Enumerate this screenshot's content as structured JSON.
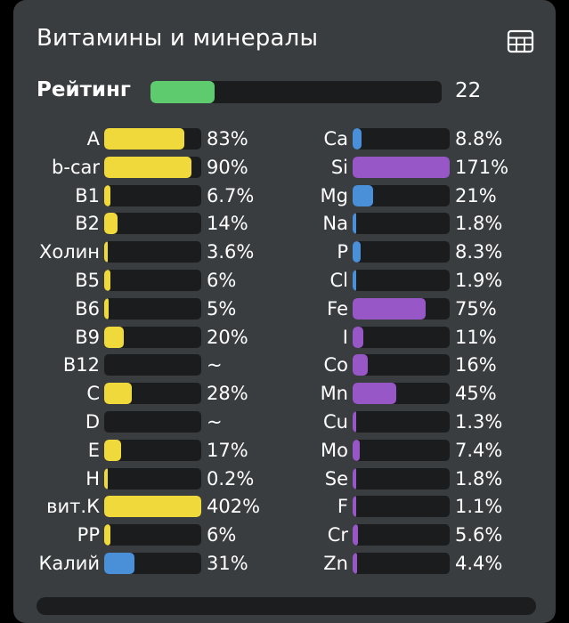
{
  "header": {
    "title": "Витамины и минералы",
    "table_icon": "table-grid-icon"
  },
  "rating": {
    "label": "Рейтинг",
    "value": "22",
    "fill_fraction": 0.22,
    "color": "#5fcb6f"
  },
  "colors": {
    "vitamin": "#f0d93a",
    "mineral": "#9857c6",
    "blue": "#4a90d9",
    "track": "#1b1c1e"
  },
  "vitamins": [
    {
      "label": "A",
      "value": "83%",
      "level": 0.83,
      "color": "yellow"
    },
    {
      "label": "b-car",
      "value": "90%",
      "level": 0.9,
      "color": "yellow"
    },
    {
      "label": "B1",
      "value": "6.7%",
      "level": 0.067,
      "color": "yellow"
    },
    {
      "label": "B2",
      "value": "14%",
      "level": 0.14,
      "color": "yellow"
    },
    {
      "label": "Холин",
      "value": "3.6%",
      "level": 0.036,
      "color": "yellow"
    },
    {
      "label": "B5",
      "value": "6%",
      "level": 0.06,
      "color": "yellow"
    },
    {
      "label": "B6",
      "value": "5%",
      "level": 0.05,
      "color": "yellow"
    },
    {
      "label": "B9",
      "value": "20%",
      "level": 0.2,
      "color": "yellow"
    },
    {
      "label": "B12",
      "value": "~",
      "level": 0,
      "color": "yellow"
    },
    {
      "label": "C",
      "value": "28%",
      "level": 0.28,
      "color": "yellow"
    },
    {
      "label": "D",
      "value": "~",
      "level": 0,
      "color": "yellow"
    },
    {
      "label": "E",
      "value": "17%",
      "level": 0.17,
      "color": "yellow"
    },
    {
      "label": "H",
      "value": "0.2%",
      "level": 0.002,
      "color": "yellow"
    },
    {
      "label": "вит.К",
      "value": "402%",
      "level": 1.0,
      "color": "yellow"
    },
    {
      "label": "PP",
      "value": "6%",
      "level": 0.06,
      "color": "yellow"
    },
    {
      "label": "Калий",
      "value": "31%",
      "level": 0.31,
      "color": "blue"
    }
  ],
  "minerals": [
    {
      "label": "Ca",
      "value": "8.8%",
      "level": 0.088,
      "color": "blue"
    },
    {
      "label": "Si",
      "value": "171%",
      "level": 1.0,
      "color": "purple"
    },
    {
      "label": "Mg",
      "value": "21%",
      "level": 0.21,
      "color": "blue"
    },
    {
      "label": "Na",
      "value": "1.8%",
      "level": 0.018,
      "color": "blue"
    },
    {
      "label": "P",
      "value": "8.3%",
      "level": 0.083,
      "color": "blue"
    },
    {
      "label": "Cl",
      "value": "1.9%",
      "level": 0.019,
      "color": "blue"
    },
    {
      "label": "Fe",
      "value": "75%",
      "level": 0.75,
      "color": "purple"
    },
    {
      "label": "I",
      "value": "11%",
      "level": 0.11,
      "color": "purple"
    },
    {
      "label": "Co",
      "value": "16%",
      "level": 0.16,
      "color": "purple"
    },
    {
      "label": "Mn",
      "value": "45%",
      "level": 0.45,
      "color": "purple"
    },
    {
      "label": "Cu",
      "value": "1.3%",
      "level": 0.013,
      "color": "purple"
    },
    {
      "label": "Mo",
      "value": "7.4%",
      "level": 0.074,
      "color": "purple"
    },
    {
      "label": "Se",
      "value": "1.8%",
      "level": 0.018,
      "color": "purple"
    },
    {
      "label": "F",
      "value": "1.1%",
      "level": 0.011,
      "color": "purple"
    },
    {
      "label": "Cr",
      "value": "5.6%",
      "level": 0.056,
      "color": "purple"
    },
    {
      "label": "Zn",
      "value": "4.4%",
      "level": 0.044,
      "color": "purple"
    }
  ]
}
